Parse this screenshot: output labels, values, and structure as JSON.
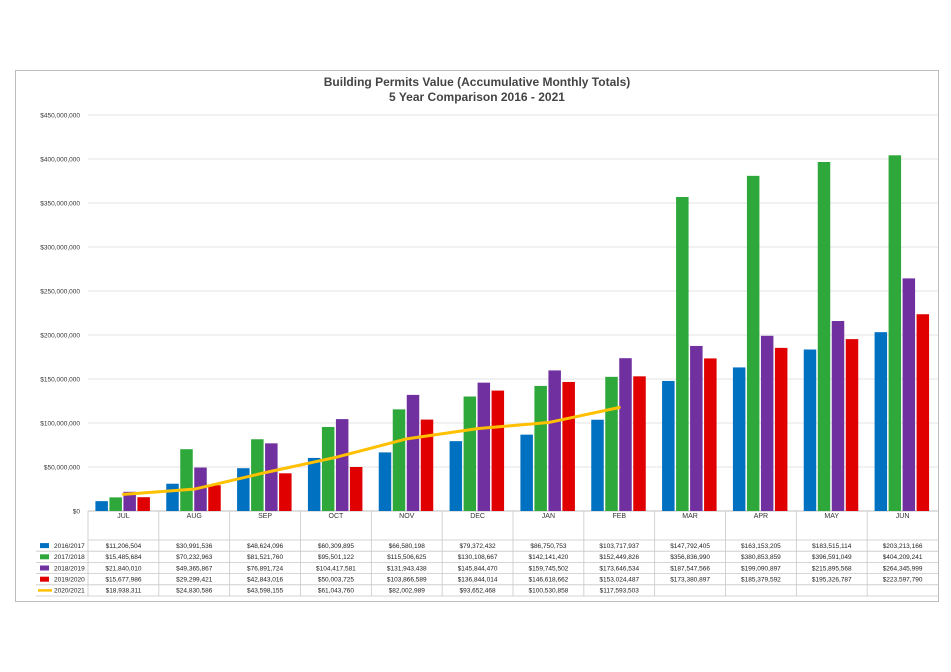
{
  "chart_data": {
    "type": "bar",
    "title": "Building Permits Value (Accumulative Monthly Totals)",
    "subtitle": "5 Year Comparison 2016 - 2021",
    "categories": [
      "JUL",
      "AUG",
      "SEP",
      "OCT",
      "NOV",
      "DEC",
      "JAN",
      "FEB",
      "MAR",
      "APR",
      "MAY",
      "JUN"
    ],
    "ylim": [
      0,
      450000000
    ],
    "yticks": [
      0,
      50000000,
      100000000,
      150000000,
      200000000,
      250000000,
      300000000,
      350000000,
      400000000,
      450000000
    ],
    "ytick_labels": [
      "$0",
      "$50,000,000",
      "$100,000,000",
      "$150,000,000",
      "$200,000,000",
      "$250,000,000",
      "$300,000,000",
      "$350,000,000",
      "$400,000,000",
      "$450,000,000"
    ],
    "grid": true,
    "legend": "data-table-bottom",
    "series": [
      {
        "name": "2016/2017",
        "type": "bar",
        "color": "#0070c0",
        "values": [
          11206504,
          30991536,
          48624096,
          60309895,
          66580198,
          79372432,
          86750753,
          103717937,
          147792405,
          163153205,
          183515114,
          203213166
        ],
        "labels": [
          "$11,206,504",
          "$30,991,536",
          "$48,624,096",
          "$60,309,895",
          "$66,580,198",
          "$79,372,432",
          "$86,750,753",
          "$103,717,937",
          "$147,792,405",
          "$163,153,205",
          "$183,515,114",
          "$203,213,166"
        ]
      },
      {
        "name": "2017/2018",
        "type": "bar",
        "color": "#2ea83a",
        "values": [
          15485684,
          70232963,
          81521760,
          95501122,
          115506625,
          130108667,
          142141420,
          152449826,
          356836990,
          380853859,
          396591049,
          404209241
        ],
        "labels": [
          "$15,485,684",
          "$70,232,963",
          "$81,521,760",
          "$95,501,122",
          "$115,506,625",
          "$130,108,667",
          "$142,141,420",
          "$152,449,826",
          "$356,836,990",
          "$380,853,859",
          "$396,591,049",
          "$404,209,241"
        ]
      },
      {
        "name": "2018/2019",
        "type": "bar",
        "color": "#7030a0",
        "values": [
          21840010,
          49365867,
          76891724,
          104417581,
          131943438,
          145844470,
          159745502,
          173646534,
          187547566,
          199090897,
          215895568,
          264345999
        ],
        "labels": [
          "$21,840,010",
          "$49,365,867",
          "$76,891,724",
          "$104,417,581",
          "$131,943,438",
          "$145,844,470",
          "$159,745,502",
          "$173,646,534",
          "$187,547,566",
          "$199,090,897",
          "$215,895,568",
          "$264,345,999"
        ]
      },
      {
        "name": "2019/2020",
        "type": "bar",
        "color": "#e00000",
        "values": [
          15677986,
          29299421,
          42843016,
          50003725,
          103866589,
          136844014,
          146618662,
          153024487,
          173380897,
          185379592,
          195326787,
          223597790
        ],
        "labels": [
          "$15,677,986",
          "$29,299,421",
          "$42,843,016",
          "$50,003,725",
          "$103,866,589",
          "$136,844,014",
          "$146,618,662",
          "$153,024,487",
          "$173,380,897",
          "$185,379,592",
          "$195,326,787",
          "$223,597,790"
        ]
      },
      {
        "name": "2020/2021",
        "type": "line",
        "color": "#ffc000",
        "values": [
          18938311,
          24830586,
          43598155,
          61043760,
          82002989,
          93652468,
          100530858,
          117593503,
          null,
          null,
          null,
          null
        ],
        "labels": [
          "$18,938,311",
          "$24,830,586",
          "$43,598,155",
          "$61,043,760",
          "$82,002,989",
          "$93,652,468",
          "$100,530,858",
          "$117,593,503",
          "",
          "",
          "",
          ""
        ]
      }
    ]
  }
}
